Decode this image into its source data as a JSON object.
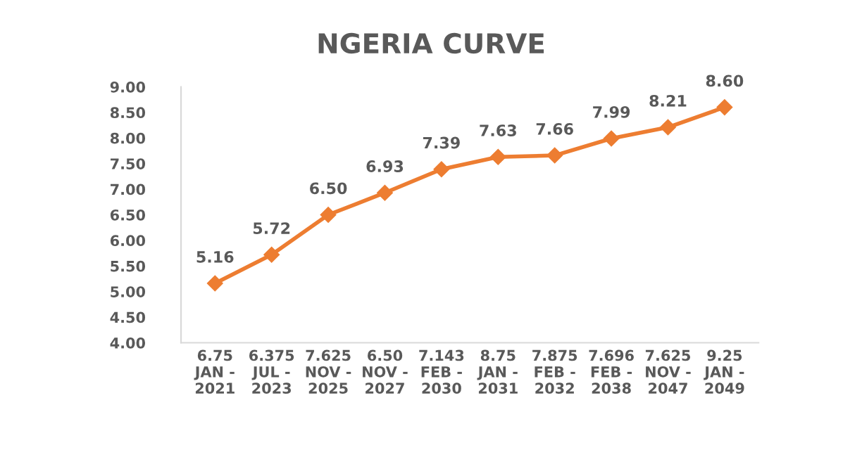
{
  "chart_data": {
    "type": "line",
    "title": "NGERIA CURVE",
    "categories": [
      "6.75\nJAN -\n2021",
      "6.375\nJUL -\n2023",
      "7.625\nNOV -\n2025",
      "6.50\nNOV -\n2027",
      "7.143\nFEB -\n2030",
      "8.75\nJAN -\n2031",
      "7.875\nFEB -\n2032",
      "7.696\nFEB -\n2038",
      "7.625\nNOV -\n2047",
      "9.25\nJAN -\n2049"
    ],
    "values": [
      5.16,
      5.72,
      6.5,
      6.93,
      7.39,
      7.63,
      7.66,
      7.99,
      8.21,
      8.6
    ],
    "value_labels": [
      "5.16",
      "5.72",
      "6.50",
      "6.93",
      "7.39",
      "7.63",
      "7.66",
      "7.99",
      "8.21",
      "8.60"
    ],
    "color": "#ed7d31",
    "marker": "diamond",
    "line_style": "solid",
    "ylim": [
      4.0,
      9.0
    ],
    "yticks": [
      {
        "value": 4.0,
        "label": "4.00"
      },
      {
        "value": 4.5,
        "label": "4.50"
      },
      {
        "value": 5.0,
        "label": "5.00"
      },
      {
        "value": 5.5,
        "label": "5.50"
      },
      {
        "value": 6.0,
        "label": "6.00"
      },
      {
        "value": 6.5,
        "label": "6.50"
      },
      {
        "value": 7.0,
        "label": "7.00"
      },
      {
        "value": 7.5,
        "label": "7.50"
      },
      {
        "value": 8.0,
        "label": "8.00"
      },
      {
        "value": 8.5,
        "label": "8.50"
      },
      {
        "value": 9.0,
        "label": "9.00"
      }
    ],
    "grid": false,
    "legend": false
  }
}
